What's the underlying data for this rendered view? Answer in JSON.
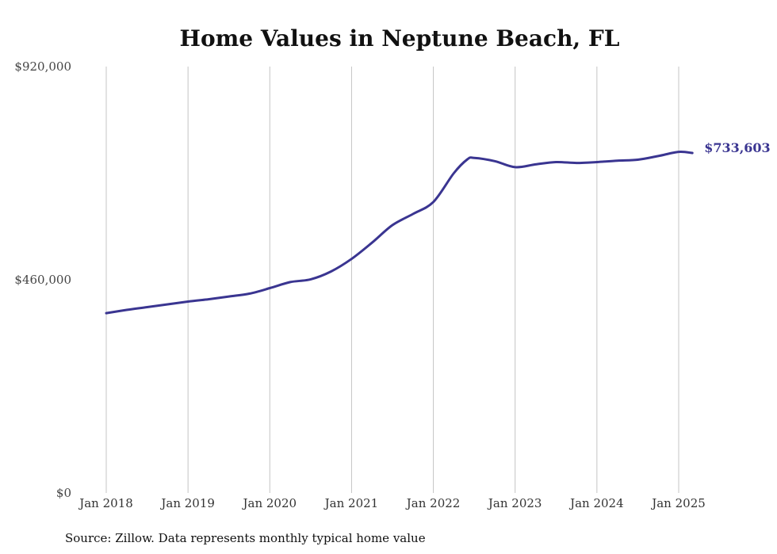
{
  "chart_data": {
    "type": "line",
    "title": "Home Values in Neptune Beach, FL",
    "xlabel": "",
    "ylabel": "",
    "ylim": [
      0,
      920000
    ],
    "xlim": [
      "2018-01",
      "2025-03"
    ],
    "grid": "vertical",
    "y_ticks": [
      {
        "value": 0,
        "label": "$0"
      },
      {
        "value": 460000,
        "label": "$460,000"
      },
      {
        "value": 920000,
        "label": "$920,000"
      }
    ],
    "x_ticks": [
      {
        "value": "2018-01",
        "label": "Jan 2018"
      },
      {
        "value": "2019-01",
        "label": "Jan 2019"
      },
      {
        "value": "2020-01",
        "label": "Jan 2020"
      },
      {
        "value": "2021-01",
        "label": "Jan 2021"
      },
      {
        "value": "2022-01",
        "label": "Jan 2022"
      },
      {
        "value": "2023-01",
        "label": "Jan 2023"
      },
      {
        "value": "2024-01",
        "label": "Jan 2024"
      },
      {
        "value": "2025-01",
        "label": "Jan 2025"
      }
    ],
    "series": [
      {
        "color": "#3a3591",
        "end_label": "$733,603",
        "points": [
          {
            "x": "2018-01",
            "y": 388000
          },
          {
            "x": "2018-04",
            "y": 395000
          },
          {
            "x": "2018-07",
            "y": 401000
          },
          {
            "x": "2018-10",
            "y": 407000
          },
          {
            "x": "2019-01",
            "y": 413000
          },
          {
            "x": "2019-04",
            "y": 418000
          },
          {
            "x": "2019-07",
            "y": 424000
          },
          {
            "x": "2019-10",
            "y": 430000
          },
          {
            "x": "2020-01",
            "y": 442000
          },
          {
            "x": "2020-04",
            "y": 455000
          },
          {
            "x": "2020-07",
            "y": 461000
          },
          {
            "x": "2020-10",
            "y": 478000
          },
          {
            "x": "2021-01",
            "y": 505000
          },
          {
            "x": "2021-04",
            "y": 540000
          },
          {
            "x": "2021-07",
            "y": 578000
          },
          {
            "x": "2021-10",
            "y": 602000
          },
          {
            "x": "2022-01",
            "y": 628000
          },
          {
            "x": "2022-04",
            "y": 690000
          },
          {
            "x": "2022-06",
            "y": 720000
          },
          {
            "x": "2022-07",
            "y": 723000
          },
          {
            "x": "2022-10",
            "y": 716000
          },
          {
            "x": "2023-01",
            "y": 703000
          },
          {
            "x": "2023-04",
            "y": 709000
          },
          {
            "x": "2023-07",
            "y": 714000
          },
          {
            "x": "2023-10",
            "y": 712000
          },
          {
            "x": "2024-01",
            "y": 714000
          },
          {
            "x": "2024-04",
            "y": 717000
          },
          {
            "x": "2024-07",
            "y": 719000
          },
          {
            "x": "2024-10",
            "y": 727000
          },
          {
            "x": "2025-01",
            "y": 736000
          },
          {
            "x": "2025-03",
            "y": 733603
          }
        ]
      }
    ]
  },
  "source_note": "Source: Zillow. Data represents monthly typical home value"
}
